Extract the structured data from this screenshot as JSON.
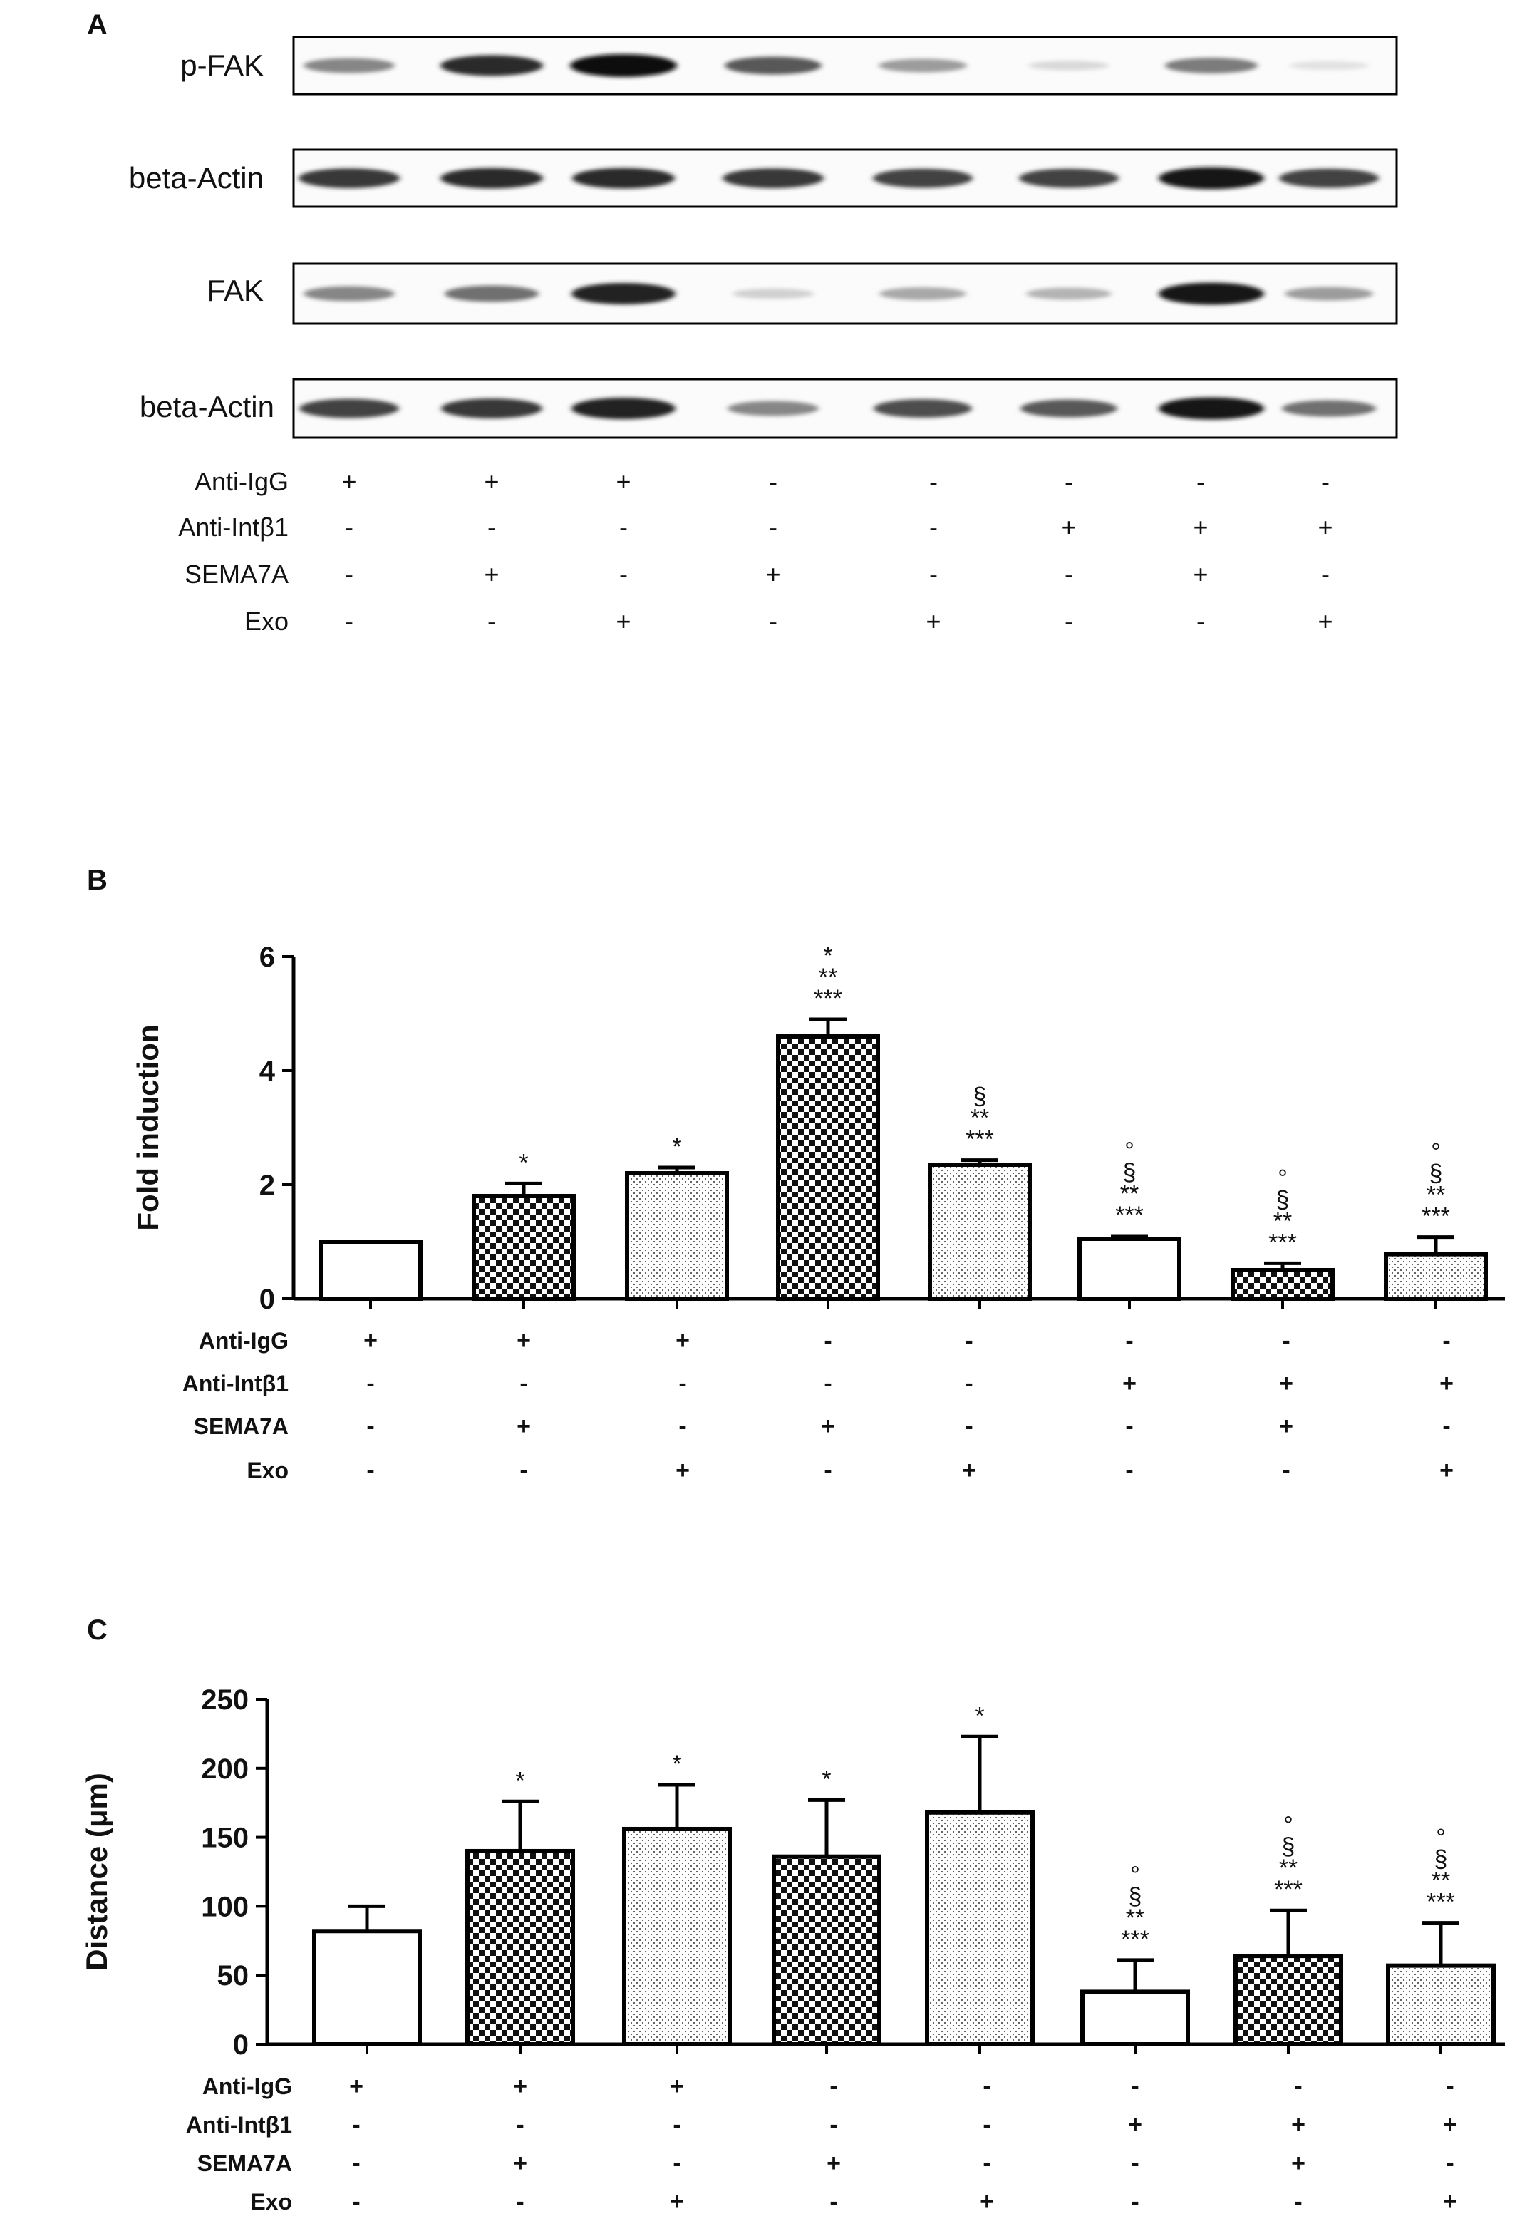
{
  "panel_a": {
    "letter": "A",
    "blots": [
      {
        "label": "p-FAK",
        "bands": [
          0.45,
          0.85,
          1.0,
          0.65,
          0.35,
          0.08,
          0.5,
          0.04
        ]
      },
      {
        "label": "beta-Actin",
        "bands": [
          0.8,
          0.85,
          0.85,
          0.8,
          0.75,
          0.75,
          0.95,
          0.75
        ]
      },
      {
        "label": "FAK",
        "bands": [
          0.45,
          0.55,
          0.9,
          0.12,
          0.3,
          0.25,
          0.95,
          0.35
        ]
      },
      {
        "label": "beta-Actin",
        "bands": [
          0.75,
          0.8,
          0.9,
          0.45,
          0.7,
          0.65,
          0.95,
          0.55
        ]
      }
    ],
    "conditions": [
      {
        "label": "Anti-IgG",
        "marks": [
          "+",
          "+",
          "+",
          "-",
          "-",
          "-",
          "-",
          "-"
        ]
      },
      {
        "label": "Anti-Intβ1",
        "marks": [
          "-",
          "-",
          "-",
          "-",
          "-",
          "+",
          "+",
          "+"
        ]
      },
      {
        "label": "SEMA7A",
        "marks": [
          "-",
          "+",
          "-",
          "+",
          "-",
          "-",
          "+",
          "-"
        ]
      },
      {
        "label": "Exo",
        "marks": [
          "-",
          "-",
          "+",
          "-",
          "+",
          "-",
          "-",
          "+"
        ]
      }
    ]
  },
  "chart_data": [
    {
      "type": "bar",
      "panel": "B",
      "ylabel": "Fold induction",
      "ylim": [
        0,
        6
      ],
      "yticks": [
        "0",
        "2",
        "4",
        "6"
      ],
      "values": [
        1.0,
        1.8,
        2.2,
        4.6,
        2.35,
        1.05,
        0.5,
        0.78
      ],
      "errors": [
        0.0,
        0.22,
        0.1,
        0.3,
        0.08,
        0.05,
        0.12,
        0.3
      ],
      "fills": [
        "white",
        "check",
        "dots",
        "check",
        "dots",
        "white",
        "check",
        "dots"
      ],
      "annotations": [
        [],
        [
          "*"
        ],
        [
          "*"
        ],
        [
          "*",
          "**",
          "***"
        ],
        [
          "§",
          "**",
          "***"
        ],
        [
          "°",
          "§",
          "**",
          "***"
        ],
        [
          "°",
          "§",
          "**",
          "***"
        ],
        [
          "°",
          "§",
          "**",
          "***"
        ]
      ],
      "conditions": [
        {
          "label": "Anti-IgG",
          "marks": [
            "+",
            "+",
            "+",
            "-",
            "-",
            "-",
            "-",
            "-"
          ]
        },
        {
          "label": "Anti-Intβ1",
          "marks": [
            "-",
            "-",
            "-",
            "-",
            "-",
            "+",
            "+",
            "+"
          ]
        },
        {
          "label": "SEMA7A",
          "marks": [
            "-",
            "+",
            "-",
            "+",
            "-",
            "-",
            "+",
            "-"
          ]
        },
        {
          "label": "Exo",
          "marks": [
            "-",
            "-",
            "+",
            "-",
            "+",
            "-",
            "-",
            "+"
          ]
        }
      ]
    },
    {
      "type": "bar",
      "panel": "C",
      "ylabel": "Distance (μm)",
      "ylim": [
        0,
        250
      ],
      "yticks": [
        "0",
        "50",
        "100",
        "150",
        "200",
        "250"
      ],
      "values": [
        82,
        140,
        156,
        136,
        168,
        38,
        64,
        57
      ],
      "errors": [
        18,
        36,
        32,
        41,
        55,
        23,
        33,
        31
      ],
      "fills": [
        "white",
        "check",
        "dots",
        "check",
        "dots",
        "white",
        "check",
        "dots"
      ],
      "annotations": [
        [],
        [
          "*"
        ],
        [
          "*"
        ],
        [
          "*"
        ],
        [
          "*"
        ],
        [
          "°",
          "§",
          "**",
          "***"
        ],
        [
          "°",
          "§",
          "**",
          "***"
        ],
        [
          "°",
          "§",
          "**",
          "***"
        ]
      ],
      "conditions": [
        {
          "label": "Anti-IgG",
          "marks": [
            "+",
            "+",
            "+",
            "-",
            "-",
            "-",
            "-",
            "-"
          ]
        },
        {
          "label": "Anti-Intβ1",
          "marks": [
            "-",
            "-",
            "-",
            "-",
            "-",
            "+",
            "+",
            "+"
          ]
        },
        {
          "label": "SEMA7A",
          "marks": [
            "-",
            "+",
            "-",
            "+",
            "-",
            "-",
            "+",
            "-"
          ]
        },
        {
          "label": "Exo",
          "marks": [
            "-",
            "-",
            "+",
            "-",
            "+",
            "-",
            "-",
            "+"
          ]
        }
      ]
    }
  ]
}
